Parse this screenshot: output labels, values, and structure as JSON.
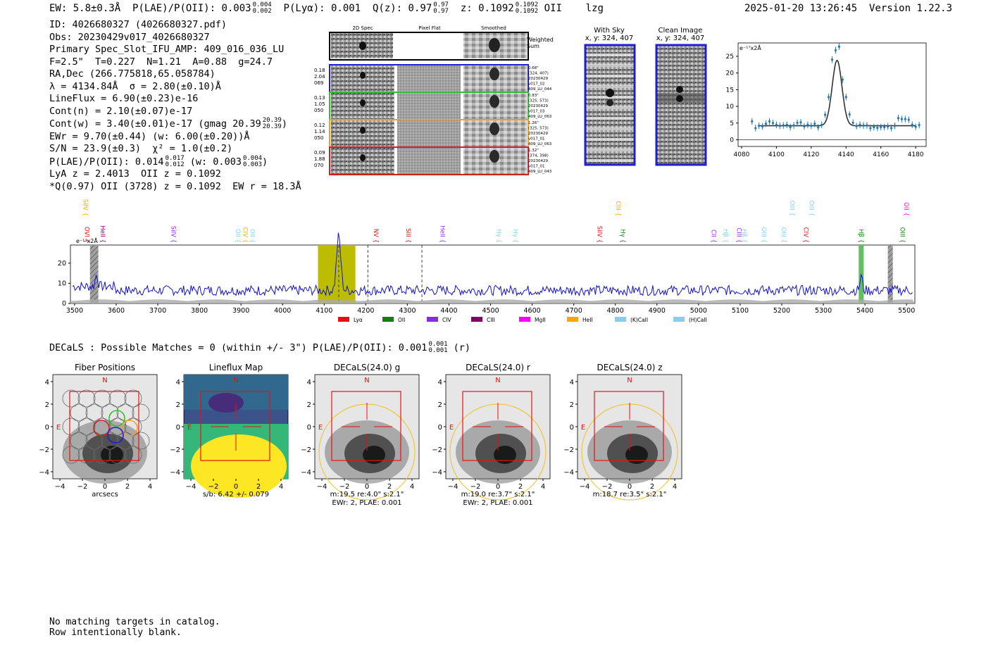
{
  "header": {
    "ew": "EW: 5.8±0.3Å",
    "plae_label": "P(LAE)/P(OII): 0.003",
    "plae_hi": "0.004",
    "plae_lo": "0.002",
    "plya": "P(Lyα): 0.001",
    "qz_label": "Q(z): 0.97",
    "qz_hi": "0.97",
    "qz_lo": "0.97",
    "z_label": "z: 0.1092",
    "z_hi": "0.1092",
    "z_lo": "0.1092",
    "line": "OII",
    "flag": "lzg",
    "timestamp": "2025-01-20 13:26:45",
    "version": "Version 1.22.3"
  },
  "info": {
    "id": "ID: 4026680327 (4026680327.pdf)",
    "obs": "Obs: 20230429v017_4026680327",
    "primary": "Primary Spec_Slot_IFU_AMP: 409_016_036_LU",
    "fwhm": "F=2.5\"  T=0.227  N=1.21  A=0.88  g=24.7",
    "radec": "RA,Dec (266.775818,65.058784)",
    "lambda": "λ = 4134.84Å  σ = 2.80(±0.10)Å",
    "lineflux": "LineFlux = 6.90(±0.23)e-16",
    "contn": "Cont(n) = 2.10(±0.07)e-17",
    "contw": "Cont(w) = 3.40(±0.01)e-17 (gmag 20.39",
    "contw_hi": "20.39",
    "contw_lo": "20.39",
    "contw_end": ")",
    "ewr": "EWr = 9.70(±0.44) (w: 6.00(±0.20))Å",
    "sn": "S/N = 23.9(±0.3)  χ² = 1.0(±0.2)",
    "plae2": "P(LAE)/P(OII): 0.014",
    "plae2_hi": "0.017",
    "plae2_lo": "0.012",
    "plae2_w": "(w: 0.003",
    "plae2_w_hi": "0.004",
    "plae2_w_lo": "0.003",
    "plae2_end": ")",
    "lya": "LyA z = 2.4013  OII z = 0.1092",
    "q": "*Q(0.97) OII (3728) z = 0.1092  EW r = 18.3Å"
  },
  "cutouts": {
    "headers": [
      "2D Spec",
      "Pixel Flat",
      "Smoothed"
    ],
    "weighted": "Weighted Sum",
    "rows": [
      {
        "color": "#1f1fd0",
        "left": [
          "0.18",
          "2.04",
          "069"
        ],
        "right": [
          "0.68\"",
          "(324, 407)",
          "20230429",
          "v017_02",
          "409_LU_044"
        ]
      },
      {
        "color": "#30c030",
        "left": [
          "0.13",
          "1.05",
          "050"
        ],
        "right": [
          "0.83\"",
          "(325, 573)",
          "20230429",
          "v017_03",
          "409_LU_063"
        ]
      },
      {
        "color": "#f0a020",
        "left": [
          "0.12",
          "1.14",
          "050"
        ],
        "right": [
          "1.26\"",
          "(325, 573)",
          "20230429",
          "v017_01",
          "409_LU_063"
        ]
      },
      {
        "color": "#d02020",
        "left": [
          "0.09",
          "1.88",
          "070"
        ],
        "right": [
          "1.32\"",
          "(374, 398)",
          "20230429",
          "v017_01",
          "409_LU_043"
        ]
      }
    ],
    "with_sky_title": "With Sky",
    "with_sky_coord": "x, y: 324, 407",
    "clean_title": "Clean Image",
    "clean_coord": "x, y: 324, 407"
  },
  "chart_data": [
    {
      "type": "line",
      "title": "",
      "ylabel": "e⁻¹⁷x2Å",
      "xlim": [
        4078,
        4186
      ],
      "ylim": [
        -2,
        29
      ],
      "xticks": [
        4080,
        4100,
        4120,
        4140,
        4160,
        4180
      ],
      "yticks": [
        0,
        5,
        10,
        15,
        20,
        25
      ],
      "x": [
        4086,
        4088,
        4090,
        4092,
        4094,
        4096,
        4098,
        4100,
        4102,
        4104,
        4106,
        4108,
        4110,
        4112,
        4114,
        4116,
        4118,
        4120,
        4122,
        4124,
        4126,
        4128,
        4130,
        4132,
        4134,
        4136,
        4138,
        4140,
        4142,
        4144,
        4146,
        4148,
        4150,
        4152,
        4154,
        4156,
        4158,
        4160,
        4162,
        4164,
        4166,
        4168,
        4170,
        4172,
        4174,
        4176,
        4178,
        4180,
        4182
      ],
      "values": [
        5.5,
        3.5,
        4.2,
        4.0,
        4.8,
        5.5,
        5.0,
        4.5,
        4.2,
        4.3,
        4.5,
        3.8,
        4.3,
        5.1,
        5.2,
        4.0,
        4.5,
        4.2,
        4.8,
        3.7,
        4.5,
        7.5,
        12.8,
        24,
        26.8,
        27.9,
        18,
        12.8,
        7.6,
        5.1,
        4.1,
        4.5,
        4.3,
        4.3,
        3.5,
        3.8,
        3.6,
        3.8,
        3.8,
        4.0,
        3.5,
        4.2,
        6.5,
        6.2,
        6.2,
        6.0,
        4.5,
        3.9,
        4.4
      ],
      "fit": {
        "continuum": 4.2,
        "amplitude": 19.6,
        "center": 4134.84,
        "sigma": 2.8
      }
    },
    {
      "type": "line",
      "title": "",
      "ylabel": "e⁻¹⁷x2Å",
      "xlim": [
        3490,
        5520
      ],
      "ylim": [
        0,
        29
      ],
      "xticks": [
        3500,
        3600,
        3700,
        3800,
        3900,
        4000,
        4100,
        4200,
        4300,
        4400,
        4500,
        4600,
        4700,
        4800,
        4900,
        5000,
        5100,
        5200,
        5300,
        5400,
        5500
      ],
      "yticks": [
        0,
        10,
        20
      ],
      "baseline": 6.5,
      "peak": {
        "center": 4134.84,
        "height": 27
      },
      "highlight_band": [
        4085,
        4175
      ],
      "dashed_lines": [
        4135,
        4205,
        4335
      ],
      "hatched": [
        3537,
        3557
      ],
      "hatched2": [
        5455,
        5467
      ],
      "green_band": [
        5385,
        5397
      ],
      "legend": [
        {
          "label": "Lyα",
          "color": "#e81010"
        },
        {
          "label": "OII",
          "color": "#108010"
        },
        {
          "label": "CIV",
          "color": "#8a2be2"
        },
        {
          "label": "CIII",
          "color": "#800070"
        },
        {
          "label": "MgII",
          "color": "#ff00ff"
        },
        {
          "label": "HeII",
          "color": "#ffa500"
        },
        {
          "label": "(K)CaII",
          "color": "#87ceeb"
        },
        {
          "label": "(H)CaII",
          "color": "#87ceeb"
        }
      ],
      "line_marks_top": [
        {
          "label": "SiIV",
          "x": 3526,
          "color": "#ffa500"
        },
        {
          "label": "CIII",
          "x": 4807,
          "color": "#ffa500"
        },
        {
          "label": "OIII",
          "x": 5225,
          "color": "#87ceeb"
        },
        {
          "label": "OIII",
          "x": 5272,
          "color": "#87ceeb"
        },
        {
          "label": "OII",
          "x": 5500,
          "color": "#ff00ff"
        }
      ],
      "line_marks_bottom": [
        {
          "label": "OVI",
          "x": 3530,
          "color": "#e81010"
        },
        {
          "label": "HeII",
          "x": 3568,
          "color": "#800070"
        },
        {
          "label": "SiIV",
          "x": 3738,
          "color": "#8a2be2"
        },
        {
          "label": "OII",
          "x": 3893,
          "color": "#87ceeb"
        },
        {
          "label": "CIV",
          "x": 3911,
          "color": "#ffa500"
        },
        {
          "label": "OII",
          "x": 3928,
          "color": "#87ceeb"
        },
        {
          "label": "NV",
          "x": 4225,
          "color": "#e81010"
        },
        {
          "label": "SiII",
          "x": 4303,
          "color": "#e81010"
        },
        {
          "label": "HeII",
          "x": 4385,
          "color": "#8a2be2"
        },
        {
          "label": "Hγ",
          "x": 4520,
          "color": "#87ceeb"
        },
        {
          "label": "Hγ",
          "x": 4560,
          "color": "#87ceeb"
        },
        {
          "label": "SiIV",
          "x": 4762,
          "color": "#e81010"
        },
        {
          "label": "Hγ",
          "x": 4818,
          "color": "#108010"
        },
        {
          "label": "CII",
          "x": 5037,
          "color": "#8a2be2"
        },
        {
          "label": "Hβ",
          "x": 5065,
          "color": "#87ceeb"
        },
        {
          "label": "CIII",
          "x": 5098,
          "color": "#8a2be2"
        },
        {
          "label": "Hβ",
          "x": 5110,
          "color": "#87ceeb"
        },
        {
          "label": "OIII",
          "x": 5158,
          "color": "#87ceeb"
        },
        {
          "label": "OIII",
          "x": 5205,
          "color": "#87ceeb"
        },
        {
          "label": "CIV",
          "x": 5258,
          "color": "#e81010"
        },
        {
          "label": "Hβ",
          "x": 5391,
          "color": "#108010"
        },
        {
          "label": "OIII",
          "x": 5490,
          "color": "#108010"
        }
      ]
    }
  ],
  "decals": {
    "header": "DECaLS : Possible Matches = 0 (within +/- 3\")  P(LAE)/P(OII): 0.001",
    "header_hi": "0.001",
    "header_lo": "0.001",
    "header_end": "(r)",
    "panels": [
      {
        "title": "Fiber Positions",
        "cap1": "arcsecs",
        "cap2": ""
      },
      {
        "title": "Lineflux Map",
        "cap1": "s/b: 6.42 +/- 0.079",
        "cap2": ""
      },
      {
        "title": "DECaLS(24.0) g",
        "cap1": "m:19.5  re:4.0\"  s:2.1\"",
        "cap2": "EWr: 2, PLAE: 0.001"
      },
      {
        "title": "DECaLS(24.0) r",
        "cap1": "m:19.0  re:3.7\"  s:2.1\"",
        "cap2": "EWr: 2, PLAE: 0.001"
      },
      {
        "title": "DECaLS(24.0) z",
        "cap1": "m:18.7  re:3.5\"  s:2.1\"",
        "cap2": ""
      }
    ],
    "ticks": [
      "4",
      "2",
      "0",
      "−2",
      "−4"
    ],
    "xticks": [
      "−4",
      "−2",
      "0",
      "2",
      "4"
    ],
    "north": "N",
    "east": "E"
  },
  "footer": {
    "line1": "No matching targets in catalog.",
    "line2": "Row intentionally blank."
  }
}
